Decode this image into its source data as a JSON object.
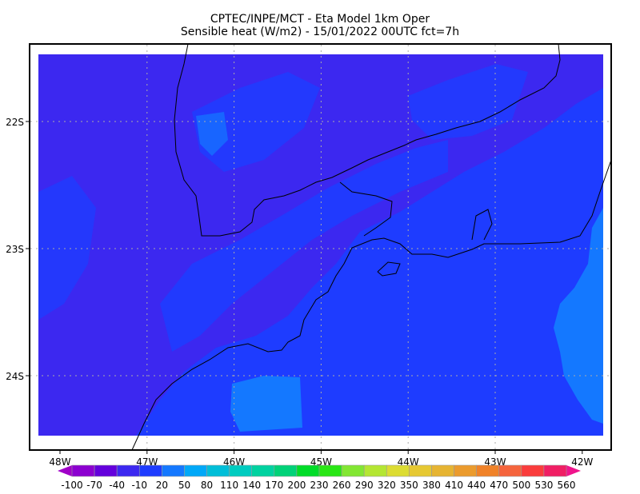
{
  "title": {
    "line1": "CPTEC/INPE/MCT -   Eta Model 1km Oper",
    "line2": "Sensible heat (W/m2) - 15/01/2022 00UTC fct=7h"
  },
  "axes": {
    "lon_labels": [
      "48W",
      "47W",
      "46W",
      "45W",
      "44W",
      "43W",
      "42W"
    ],
    "lon_values": [
      -48,
      -47,
      -46,
      -45,
      -44,
      -43,
      -42
    ],
    "lat_labels": [
      "22S",
      "23S",
      "24S"
    ],
    "lat_values": [
      -22,
      -23,
      -24
    ],
    "grid": true
  },
  "field_colors": {
    "purple": "#3c28f0",
    "blue": "#1e3cff",
    "light_blue": "#1478ff"
  },
  "colorbar": {
    "labels": [
      "-100",
      "-70",
      "-40",
      "-10",
      "20",
      "50",
      "80",
      "110",
      "140",
      "170",
      "200",
      "230",
      "260",
      "290",
      "320",
      "350",
      "380",
      "410",
      "440",
      "470",
      "500",
      "530",
      "560"
    ],
    "colors": [
      "#8c00d0",
      "#6400dc",
      "#3c28f0",
      "#1e3cff",
      "#1478ff",
      "#00a8f8",
      "#00bed8",
      "#00ccc0",
      "#00d2a0",
      "#00d278",
      "#00dc28",
      "#28e614",
      "#82e632",
      "#b4e632",
      "#dcdc32",
      "#e6c832",
      "#e6b432",
      "#eb9b2d",
      "#f08228",
      "#f5643c",
      "#fa3c3c",
      "#f01e64"
    ],
    "under_color": "#a000c8",
    "over_color": "#f0148c"
  }
}
